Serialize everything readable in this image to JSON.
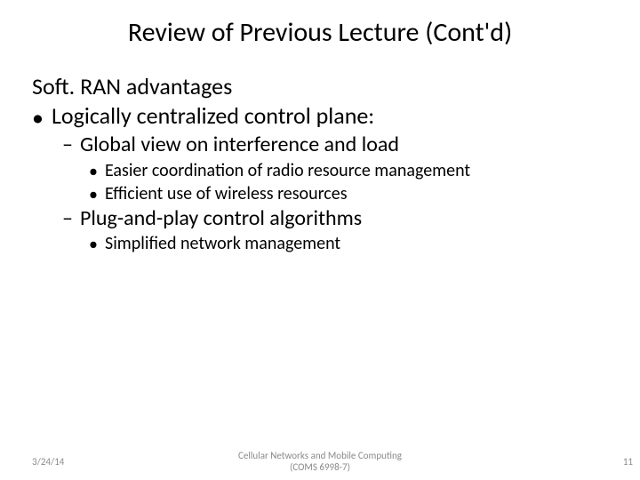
{
  "colors": {
    "background": "#ffffff",
    "text": "#000000",
    "footer": "#8a8a8a"
  },
  "title": "Review of Previous Lecture (Cont'd)",
  "body": {
    "intro": "Soft. RAN advantages",
    "b1": {
      "bullet": "•",
      "text": "Logically centralized control plane:"
    },
    "b1_1": {
      "bullet": "–",
      "text": "Global view on interference and load"
    },
    "b1_1_1": {
      "bullet": "•",
      "text": "Easier coordination of radio resource management"
    },
    "b1_1_2": {
      "bullet": "•",
      "text": "Efficient use of wireless resources"
    },
    "b1_2": {
      "bullet": "–",
      "text": "Plug-and-play control algorithms"
    },
    "b1_2_1": {
      "bullet": "•",
      "text": "Simplified network management"
    }
  },
  "footer": {
    "date": "3/24/14",
    "center_line1": "Cellular Networks and Mobile Computing",
    "center_line2": "(COMS 6998-7)",
    "page": "11"
  }
}
